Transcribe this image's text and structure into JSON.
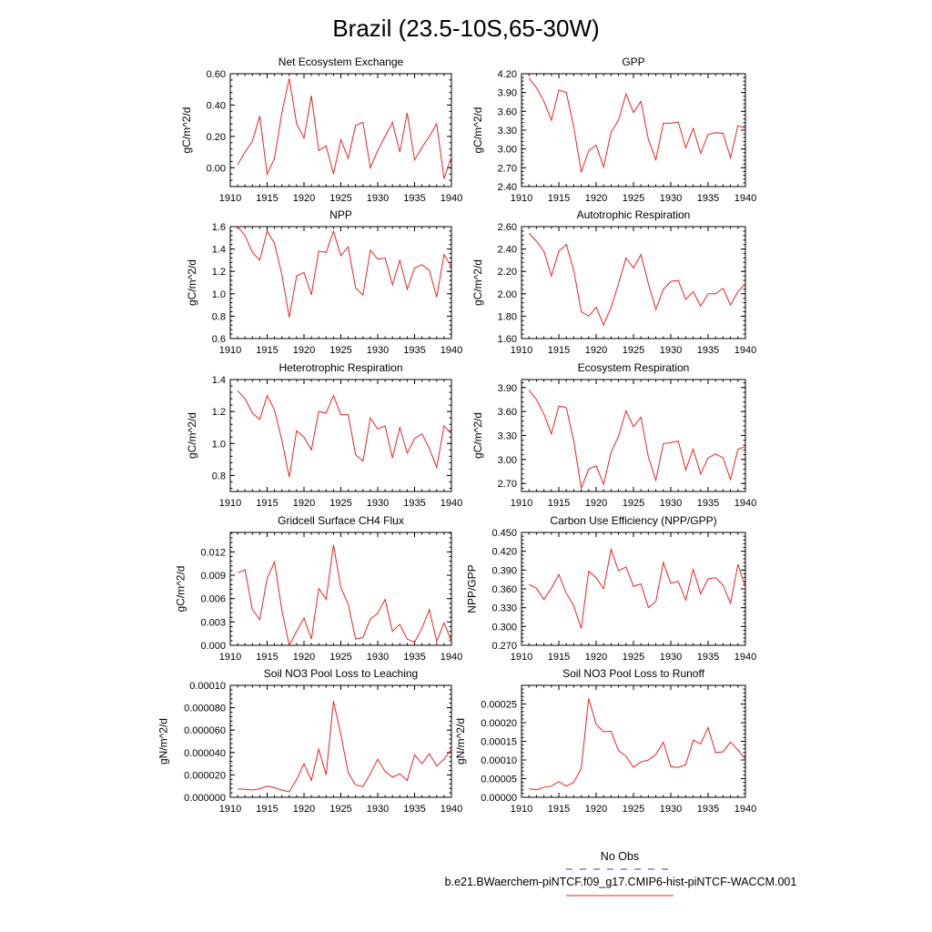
{
  "figure": {
    "title": "Brazil (23.5-10S,65-30W)",
    "legend": [
      {
        "label": "No Obs",
        "color": "#3c3ccc",
        "dash": true
      },
      {
        "label": "b.e21.BWaerchem-piNTCF.f09_g17.CMIP6-hist-piNTCF-WACCM.001",
        "color": "#ee2222",
        "dash": false
      }
    ]
  },
  "chart_data": [
    {
      "type": "line",
      "title": "Net Ecosystem Exchange",
      "ylabel": "gC/m^2/d",
      "xlim": [
        1910,
        1940
      ],
      "xticks": [
        1910,
        1915,
        1920,
        1925,
        1930,
        1935,
        1940
      ],
      "ylim": [
        -0.12,
        0.6
      ],
      "yticks": [
        "0.00",
        "0.20",
        "0.40",
        "0.60"
      ],
      "x": [
        1911,
        1912,
        1913,
        1914,
        1915,
        1916,
        1917,
        1918,
        1919,
        1920,
        1921,
        1922,
        1923,
        1924,
        1925,
        1926,
        1927,
        1928,
        1929,
        1930,
        1931,
        1932,
        1933,
        1934,
        1935,
        1936,
        1937,
        1938,
        1939,
        1940
      ],
      "series": [
        {
          "color": "#ee2222",
          "values": [
            0.02,
            0.1,
            0.17,
            0.33,
            -0.04,
            0.06,
            0.35,
            0.57,
            0.28,
            0.19,
            0.46,
            0.11,
            0.14,
            -0.04,
            0.18,
            0.06,
            0.27,
            0.29,
            0.0,
            0.11,
            0.2,
            0.29,
            0.1,
            0.35,
            0.05,
            0.13,
            0.2,
            0.28,
            -0.07,
            0.07
          ]
        }
      ]
    },
    {
      "type": "line",
      "title": "GPP",
      "ylabel": "gC/m^2/d",
      "xlim": [
        1910,
        1940
      ],
      "xticks": [
        1910,
        1915,
        1920,
        1925,
        1930,
        1935,
        1940
      ],
      "ylim": [
        2.4,
        4.2
      ],
      "yticks": [
        "2.40",
        "2.70",
        "3.00",
        "3.30",
        "3.60",
        "3.90",
        "4.20"
      ],
      "x": [
        1911,
        1912,
        1913,
        1914,
        1915,
        1916,
        1917,
        1918,
        1919,
        1920,
        1921,
        1922,
        1923,
        1924,
        1925,
        1926,
        1927,
        1928,
        1929,
        1930,
        1931,
        1932,
        1933,
        1934,
        1935,
        1936,
        1937,
        1938,
        1939,
        1940
      ],
      "series": [
        {
          "color": "#ee2222",
          "values": [
            4.13,
            3.98,
            3.76,
            3.46,
            3.94,
            3.9,
            3.35,
            2.63,
            2.97,
            3.06,
            2.71,
            3.27,
            3.46,
            3.88,
            3.58,
            3.76,
            3.15,
            2.83,
            3.41,
            3.41,
            3.43,
            3.02,
            3.33,
            2.93,
            3.23,
            3.26,
            3.25,
            2.86,
            3.37,
            3.33
          ]
        }
      ]
    },
    {
      "type": "line",
      "title": "NPP",
      "ylabel": "gC/m^2/d",
      "xlim": [
        1910,
        1940
      ],
      "xticks": [
        1910,
        1915,
        1920,
        1925,
        1930,
        1935,
        1940
      ],
      "ylim": [
        0.6,
        1.6
      ],
      "yticks": [
        "0.6",
        "0.8",
        "1.0",
        "1.2",
        "1.4",
        "1.6"
      ],
      "x": [
        1911,
        1912,
        1913,
        1914,
        1915,
        1916,
        1917,
        1918,
        1919,
        1920,
        1921,
        1922,
        1923,
        1924,
        1925,
        1926,
        1927,
        1928,
        1929,
        1930,
        1931,
        1932,
        1933,
        1934,
        1935,
        1936,
        1937,
        1938,
        1939,
        1940
      ],
      "series": [
        {
          "color": "#ee2222",
          "values": [
            1.6,
            1.52,
            1.37,
            1.3,
            1.56,
            1.45,
            1.17,
            0.79,
            1.16,
            1.19,
            0.99,
            1.38,
            1.37,
            1.56,
            1.34,
            1.42,
            1.05,
            0.99,
            1.39,
            1.31,
            1.32,
            1.08,
            1.3,
            1.04,
            1.23,
            1.26,
            1.21,
            0.97,
            1.35,
            1.24
          ]
        }
      ]
    },
    {
      "type": "line",
      "title": "Autotrophic Respiration",
      "ylabel": "gC/m^2/d",
      "xlim": [
        1910,
        1940
      ],
      "xticks": [
        1910,
        1915,
        1920,
        1925,
        1930,
        1935,
        1940
      ],
      "ylim": [
        1.6,
        2.6
      ],
      "yticks": [
        "1.60",
        "1.80",
        "2.00",
        "2.20",
        "2.40",
        "2.60"
      ],
      "x": [
        1911,
        1912,
        1913,
        1914,
        1915,
        1916,
        1917,
        1918,
        1919,
        1920,
        1921,
        1922,
        1923,
        1924,
        1925,
        1926,
        1927,
        1928,
        1929,
        1930,
        1931,
        1932,
        1933,
        1934,
        1935,
        1936,
        1937,
        1938,
        1939,
        1940
      ],
      "series": [
        {
          "color": "#ee2222",
          "values": [
            2.54,
            2.47,
            2.38,
            2.16,
            2.38,
            2.44,
            2.21,
            1.84,
            1.8,
            1.88,
            1.72,
            1.88,
            2.09,
            2.32,
            2.23,
            2.35,
            2.09,
            1.86,
            2.04,
            2.11,
            2.12,
            1.95,
            2.02,
            1.89,
            2.0,
            2.0,
            2.05,
            1.9,
            2.02,
            2.09
          ]
        }
      ]
    },
    {
      "type": "line",
      "title": "Heterotrophic Respiration",
      "ylabel": "gC/m^2/d",
      "xlim": [
        1910,
        1940
      ],
      "xticks": [
        1910,
        1915,
        1920,
        1925,
        1930,
        1935,
        1940
      ],
      "ylim": [
        0.7,
        1.4
      ],
      "yticks": [
        "0.8",
        "1.0",
        "1.2",
        "1.4"
      ],
      "x": [
        1911,
        1912,
        1913,
        1914,
        1915,
        1916,
        1917,
        1918,
        1919,
        1920,
        1921,
        1922,
        1923,
        1924,
        1925,
        1926,
        1927,
        1928,
        1929,
        1930,
        1931,
        1932,
        1933,
        1934,
        1935,
        1936,
        1937,
        1938,
        1939,
        1940
      ],
      "series": [
        {
          "color": "#ee2222",
          "values": [
            1.33,
            1.28,
            1.19,
            1.15,
            1.3,
            1.21,
            1.02,
            0.79,
            1.08,
            1.04,
            0.96,
            1.2,
            1.19,
            1.3,
            1.18,
            1.18,
            0.93,
            0.89,
            1.16,
            1.09,
            1.11,
            0.91,
            1.1,
            0.94,
            1.03,
            1.06,
            0.97,
            0.85,
            1.11,
            1.06
          ]
        }
      ]
    },
    {
      "type": "line",
      "title": "Ecosystem Respiration",
      "ylabel": "gC/m^2/d",
      "xlim": [
        1910,
        1940
      ],
      "xticks": [
        1910,
        1915,
        1920,
        1925,
        1930,
        1935,
        1940
      ],
      "ylim": [
        2.6,
        4.0
      ],
      "yticks": [
        "2.70",
        "3.00",
        "3.30",
        "3.60",
        "3.90"
      ],
      "x": [
        1911,
        1912,
        1913,
        1914,
        1915,
        1916,
        1917,
        1918,
        1919,
        1920,
        1921,
        1922,
        1923,
        1924,
        1925,
        1926,
        1927,
        1928,
        1929,
        1930,
        1931,
        1932,
        1933,
        1934,
        1935,
        1936,
        1937,
        1938,
        1939,
        1940
      ],
      "series": [
        {
          "color": "#ee2222",
          "values": [
            3.87,
            3.75,
            3.57,
            3.32,
            3.67,
            3.65,
            3.23,
            2.64,
            2.88,
            2.92,
            2.69,
            3.09,
            3.29,
            3.61,
            3.41,
            3.53,
            3.03,
            2.74,
            3.2,
            3.21,
            3.23,
            2.87,
            3.13,
            2.82,
            3.02,
            3.07,
            3.02,
            2.75,
            3.13,
            3.16
          ]
        }
      ]
    },
    {
      "type": "line",
      "title": "Gridcell Surface CH4 Flux",
      "ylabel": "gC/m^2/d",
      "xlim": [
        1910,
        1940
      ],
      "xticks": [
        1910,
        1915,
        1920,
        1925,
        1930,
        1935,
        1940
      ],
      "ylim": [
        0.0,
        0.0145
      ],
      "yticks": [
        "0.000",
        "0.003",
        "0.006",
        "0.009",
        "0.012"
      ],
      "x": [
        1911,
        1912,
        1913,
        1914,
        1915,
        1916,
        1917,
        1918,
        1919,
        1920,
        1921,
        1922,
        1923,
        1924,
        1925,
        1926,
        1927,
        1928,
        1929,
        1930,
        1931,
        1932,
        1933,
        1934,
        1935,
        1936,
        1937,
        1938,
        1939,
        1940
      ],
      "series": [
        {
          "color": "#ee2222",
          "values": [
            0.0093,
            0.0097,
            0.0046,
            0.0033,
            0.0086,
            0.0107,
            0.0045,
            0.0,
            0.0018,
            0.0035,
            0.0008,
            0.0073,
            0.0059,
            0.0129,
            0.0074,
            0.0053,
            0.0008,
            0.001,
            0.0034,
            0.0041,
            0.0059,
            0.0018,
            0.0027,
            0.0008,
            0.0004,
            0.0022,
            0.0046,
            0.0005,
            0.0029,
            0.0005
          ]
        }
      ]
    },
    {
      "type": "line",
      "title": "Carbon Use Efficiency (NPP/GPP)",
      "ylabel": "NPP/GPP",
      "xlim": [
        1910,
        1940
      ],
      "xticks": [
        1910,
        1915,
        1920,
        1925,
        1930,
        1935,
        1940
      ],
      "ylim": [
        0.27,
        0.45
      ],
      "yticks": [
        "0.270",
        "0.300",
        "0.330",
        "0.360",
        "0.390",
        "0.420",
        "0.450"
      ],
      "x": [
        1911,
        1912,
        1913,
        1914,
        1915,
        1916,
        1917,
        1918,
        1919,
        1920,
        1921,
        1922,
        1923,
        1924,
        1925,
        1926,
        1927,
        1928,
        1929,
        1930,
        1931,
        1932,
        1933,
        1934,
        1935,
        1936,
        1937,
        1938,
        1939,
        1940
      ],
      "series": [
        {
          "color": "#ee2222",
          "values": [
            0.367,
            0.361,
            0.343,
            0.361,
            0.383,
            0.353,
            0.333,
            0.297,
            0.388,
            0.378,
            0.36,
            0.423,
            0.389,
            0.395,
            0.364,
            0.368,
            0.33,
            0.34,
            0.402,
            0.369,
            0.372,
            0.342,
            0.391,
            0.352,
            0.376,
            0.378,
            0.366,
            0.337,
            0.399,
            0.362
          ]
        }
      ]
    },
    {
      "type": "line",
      "title": "Soil NO3 Pool Loss to Leaching",
      "ylabel": "gN/m^2/d",
      "xlim": [
        1910,
        1940
      ],
      "xticks": [
        1910,
        1915,
        1920,
        1925,
        1930,
        1935,
        1940
      ],
      "ylim": [
        0.0,
        0.0001
      ],
      "yticks": [
        "0.000000",
        "0.000020",
        "0.000040",
        "0.000060",
        "0.000080",
        "0.00010"
      ],
      "x": [
        1911,
        1912,
        1913,
        1914,
        1915,
        1916,
        1917,
        1918,
        1919,
        1920,
        1921,
        1922,
        1923,
        1924,
        1925,
        1926,
        1927,
        1928,
        1929,
        1930,
        1931,
        1932,
        1933,
        1934,
        1935,
        1936,
        1937,
        1938,
        1939,
        1940
      ],
      "series": [
        {
          "color": "#ee2222",
          "values": [
            7.3e-06,
            7.2e-06,
            6.5e-06,
            7.7e-06,
            1e-05,
            8.5e-06,
            6.5e-06,
            4.8e-06,
            1.6e-05,
            3e-05,
            1.5e-05,
            4.3e-05,
            2e-05,
            8.6e-05,
            5.6e-05,
            2.2e-05,
            1.1e-05,
            9.5e-06,
            2.1e-05,
            3.4e-05,
            2.3e-05,
            1.8e-05,
            2.1e-05,
            1.5e-05,
            3.8e-05,
            3e-05,
            3.9e-05,
            2.8e-05,
            3.4e-05,
            4.3e-05
          ]
        }
      ]
    },
    {
      "type": "line",
      "title": "Soil NO3 Pool Loss to Runoff",
      "ylabel": "gN/m^2/d",
      "xlim": [
        1910,
        1940
      ],
      "xticks": [
        1910,
        1915,
        1920,
        1925,
        1930,
        1935,
        1940
      ],
      "ylim": [
        0.0,
        0.0003
      ],
      "yticks": [
        "0.00000",
        "0.00005",
        "0.00010",
        "0.00015",
        "0.00020",
        "0.00025"
      ],
      "x": [
        1911,
        1912,
        1913,
        1914,
        1915,
        1916,
        1917,
        1918,
        1919,
        1920,
        1921,
        1922,
        1923,
        1924,
        1925,
        1926,
        1927,
        1928,
        1929,
        1930,
        1931,
        1932,
        1933,
        1934,
        1935,
        1936,
        1937,
        1938,
        1939,
        1940
      ],
      "series": [
        {
          "color": "#ee2222",
          "values": [
            2.3e-05,
            2e-05,
            2.7e-05,
            3e-05,
            4.2e-05,
            3e-05,
            4e-05,
            7.7e-05,
            0.000265,
            0.000195,
            0.000176,
            0.000177,
            0.000125,
            0.00011,
            8e-05,
            9.5e-05,
            0.0001,
            0.000115,
            0.000148,
            8.2e-05,
            8e-05,
            8.7e-05,
            0.000153,
            0.000143,
            0.000187,
            0.00012,
            0.000122,
            0.000148,
            0.000127,
            0.000102
          ]
        }
      ]
    }
  ]
}
